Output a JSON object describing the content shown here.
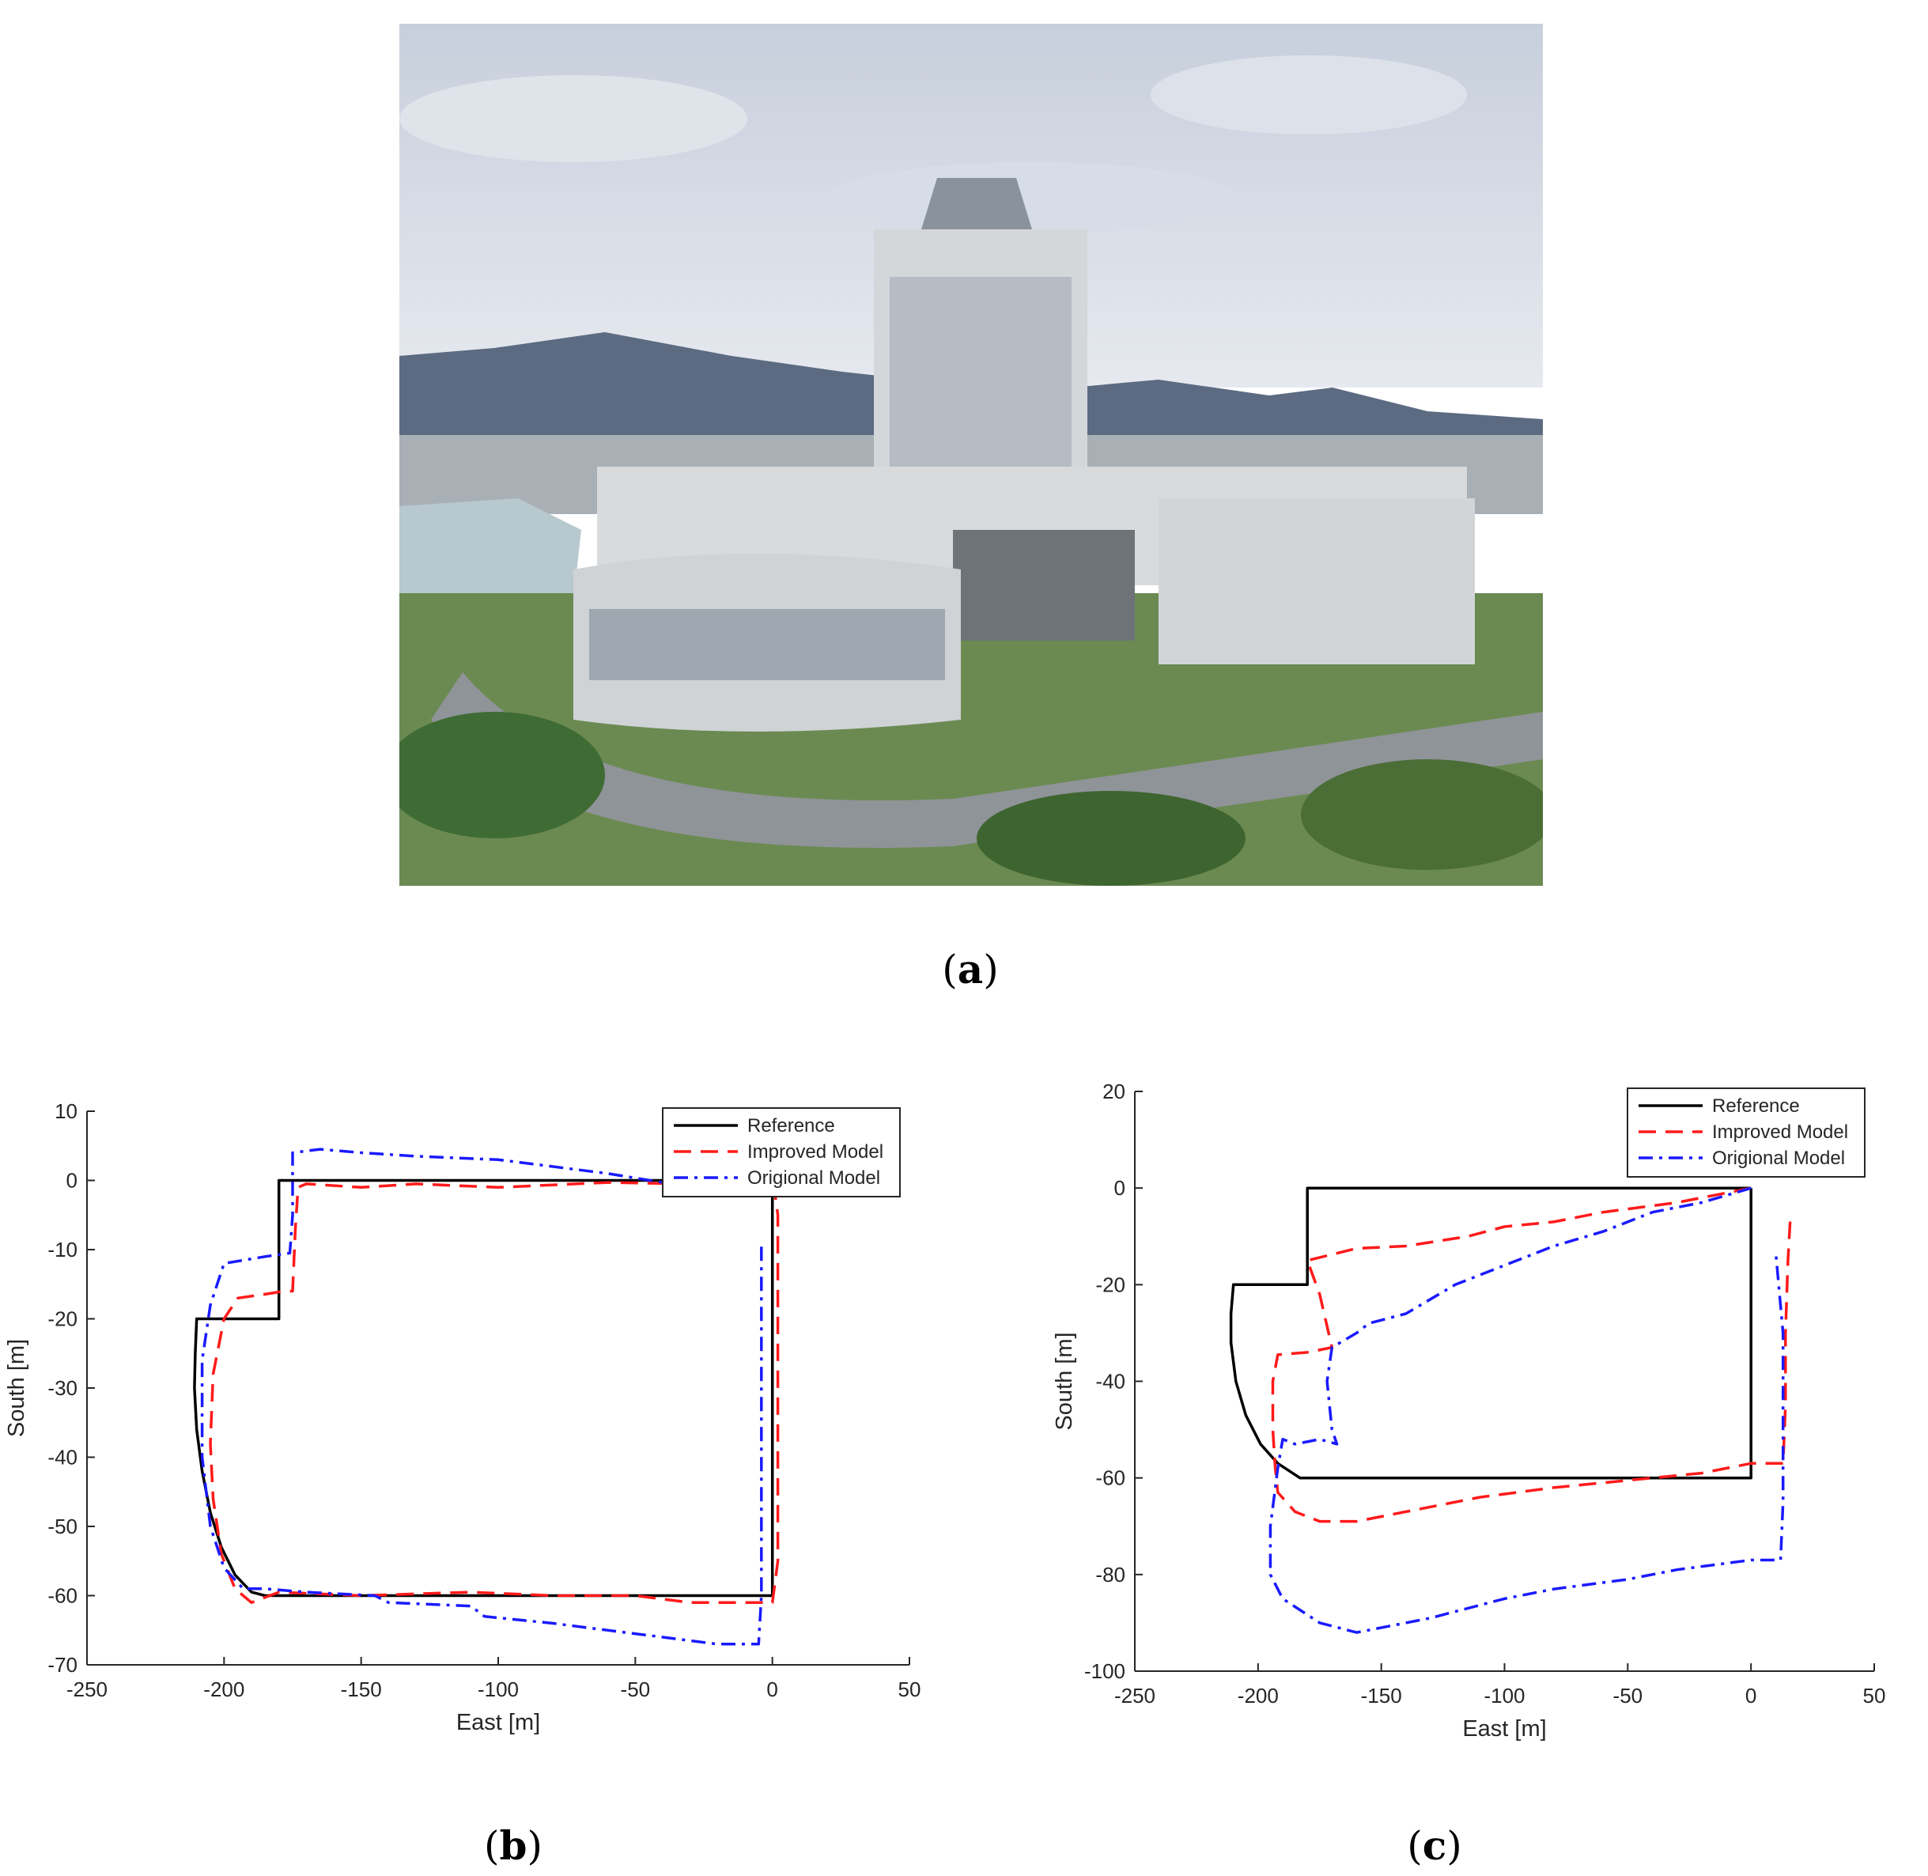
{
  "captions": {
    "a": "a",
    "b": "b",
    "c": "c"
  },
  "photo": {
    "subject": "aerial-campus-building-photo"
  },
  "colors": {
    "reference": "#000000",
    "improved": "#ff1a1a",
    "original": "#1a1aff"
  },
  "chart_data": [
    {
      "id": "b",
      "type": "line",
      "xlabel": "East [m]",
      "ylabel": "South [m]",
      "xlim": [
        -250,
        50
      ],
      "ylim": [
        -70,
        10
      ],
      "xticks": [
        -250,
        -200,
        -150,
        -100,
        -50,
        0,
        50
      ],
      "yticks": [
        -70,
        -60,
        -50,
        -40,
        -30,
        -20,
        -10,
        0,
        10
      ],
      "legend_position": "top-right",
      "grid": false,
      "series": [
        {
          "name": "Reference",
          "style": "solid",
          "points": [
            [
              0,
              0
            ],
            [
              -180,
              0
            ],
            [
              -180,
              -20
            ],
            [
              -210,
              -20
            ],
            [
              -210.5,
              -25
            ],
            [
              -210.8,
              -30
            ],
            [
              -210,
              -36
            ],
            [
              -208,
              -42
            ],
            [
              -205,
              -48
            ],
            [
              -201,
              -53
            ],
            [
              -196,
              -57
            ],
            [
              -190,
              -59.5
            ],
            [
              -185,
              -60
            ],
            [
              0,
              -60
            ],
            [
              0,
              0
            ]
          ]
        },
        {
          "name": "Improved Model",
          "style": "dashed",
          "points": [
            [
              0,
              0
            ],
            [
              -30,
              -0.5
            ],
            [
              -60,
              -0.3
            ],
            [
              -100,
              -1
            ],
            [
              -130,
              -0.5
            ],
            [
              -150,
              -1
            ],
            [
              -170,
              -0.5
            ],
            [
              -173,
              -1
            ],
            [
              -174,
              -7
            ],
            [
              -175,
              -16
            ],
            [
              -178,
              -16
            ],
            [
              -186,
              -16.5
            ],
            [
              -195,
              -17
            ],
            [
              -200,
              -20
            ],
            [
              -204,
              -28
            ],
            [
              -205,
              -38
            ],
            [
              -204,
              -46
            ],
            [
              -201,
              -54
            ],
            [
              -196,
              -59
            ],
            [
              -190,
              -61
            ],
            [
              -180,
              -59.5
            ],
            [
              -150,
              -60
            ],
            [
              -110,
              -59.5
            ],
            [
              -80,
              -60
            ],
            [
              -50,
              -60
            ],
            [
              -30,
              -61
            ],
            [
              -10,
              -61
            ],
            [
              0,
              -61
            ],
            [
              2,
              -55
            ],
            [
              2,
              -40
            ],
            [
              2,
              -20
            ],
            [
              2,
              -5
            ],
            [
              1,
              -2
            ]
          ]
        },
        {
          "name": "Origional Model",
          "style": "dashdot",
          "points": [
            [
              0,
              0
            ],
            [
              -20,
              -0.5
            ],
            [
              -40,
              -0.3
            ],
            [
              -60,
              1
            ],
            [
              -100,
              3
            ],
            [
              -130,
              3.5
            ],
            [
              -150,
              4
            ],
            [
              -165,
              4.5
            ],
            [
              -175,
              4
            ],
            [
              -175,
              -5
            ],
            [
              -176,
              -10.5
            ],
            [
              -185,
              -11
            ],
            [
              -200,
              -12
            ],
            [
              -205,
              -18
            ],
            [
              -208,
              -26
            ],
            [
              -208,
              -40
            ],
            [
              -205,
              -50
            ],
            [
              -200,
              -56
            ],
            [
              -193,
              -59
            ],
            [
              -185,
              -59
            ],
            [
              -170,
              -59.5
            ],
            [
              -145,
              -60
            ],
            [
              -140,
              -61
            ],
            [
              -110,
              -61.5
            ],
            [
              -105,
              -63
            ],
            [
              -80,
              -64
            ],
            [
              -60,
              -65
            ],
            [
              -40,
              -66
            ],
            [
              -20,
              -67
            ],
            [
              -5,
              -67
            ],
            [
              -4,
              -60
            ],
            [
              -4,
              -40
            ],
            [
              -4,
              -20
            ],
            [
              -4,
              -9
            ]
          ]
        }
      ]
    },
    {
      "id": "c",
      "type": "line",
      "xlabel": "East [m]",
      "ylabel": "South [m]",
      "xlim": [
        -250,
        50
      ],
      "ylim": [
        -100,
        20
      ],
      "xticks": [
        -250,
        -200,
        -150,
        -100,
        -50,
        0,
        50
      ],
      "yticks": [
        -100,
        -80,
        -60,
        -40,
        -20,
        0,
        20
      ],
      "legend_position": "top-right",
      "grid": false,
      "series": [
        {
          "name": "Reference",
          "style": "solid",
          "points": [
            [
              0,
              0
            ],
            [
              -180,
              0
            ],
            [
              -180,
              -20
            ],
            [
              -210,
              -20
            ],
            [
              -211,
              -26
            ],
            [
              -211,
              -32
            ],
            [
              -209,
              -40
            ],
            [
              -205,
              -47
            ],
            [
              -199,
              -53
            ],
            [
              -192,
              -57
            ],
            [
              -183,
              -60
            ],
            [
              0,
              -60
            ],
            [
              0,
              0
            ]
          ]
        },
        {
          "name": "Improved Model",
          "style": "dashed",
          "points": [
            [
              0,
              0
            ],
            [
              -30,
              -3
            ],
            [
              -60,
              -5
            ],
            [
              -80,
              -7
            ],
            [
              -100,
              -8
            ],
            [
              -115,
              -10
            ],
            [
              -140,
              -12
            ],
            [
              -160,
              -12.5
            ],
            [
              -180,
              -15
            ],
            [
              -175,
              -22
            ],
            [
              -170,
              -33
            ],
            [
              -180,
              -34
            ],
            [
              -192,
              -34.5
            ],
            [
              -194,
              -40
            ],
            [
              -194,
              -50
            ],
            [
              -193,
              -58
            ],
            [
              -192,
              -63
            ],
            [
              -185,
              -67
            ],
            [
              -175,
              -69
            ],
            [
              -160,
              -69
            ],
            [
              -140,
              -67
            ],
            [
              -110,
              -64
            ],
            [
              -80,
              -62
            ],
            [
              -60,
              -61
            ],
            [
              -40,
              -60
            ],
            [
              -20,
              -59
            ],
            [
              0,
              -57
            ],
            [
              13,
              -57
            ],
            [
              14,
              -45
            ],
            [
              14,
              -30
            ],
            [
              15,
              -15
            ],
            [
              16,
              -6
            ]
          ]
        },
        {
          "name": "Origional Model",
          "style": "dashdot",
          "points": [
            [
              0,
              0
            ],
            [
              -20,
              -3
            ],
            [
              -40,
              -5
            ],
            [
              -60,
              -9
            ],
            [
              -80,
              -12
            ],
            [
              -110,
              -18
            ],
            [
              -120,
              -20
            ],
            [
              -140,
              -26
            ],
            [
              -155,
              -28
            ],
            [
              -160,
              -30
            ],
            [
              -170,
              -33
            ],
            [
              -172,
              -40
            ],
            [
              -170,
              -50
            ],
            [
              -168,
              -53
            ],
            [
              -175,
              -52
            ],
            [
              -185,
              -53
            ],
            [
              -190,
              -52
            ],
            [
              -192,
              -58
            ],
            [
              -195,
              -70
            ],
            [
              -195,
              -80
            ],
            [
              -190,
              -85
            ],
            [
              -175,
              -90
            ],
            [
              -160,
              -92
            ],
            [
              -130,
              -89
            ],
            [
              -100,
              -85
            ],
            [
              -80,
              -83
            ],
            [
              -50,
              -81
            ],
            [
              -30,
              -79
            ],
            [
              0,
              -77
            ],
            [
              12,
              -77
            ],
            [
              13,
              -65
            ],
            [
              13,
              -45
            ],
            [
              13,
              -30
            ],
            [
              10,
              -13
            ]
          ]
        }
      ]
    }
  ]
}
